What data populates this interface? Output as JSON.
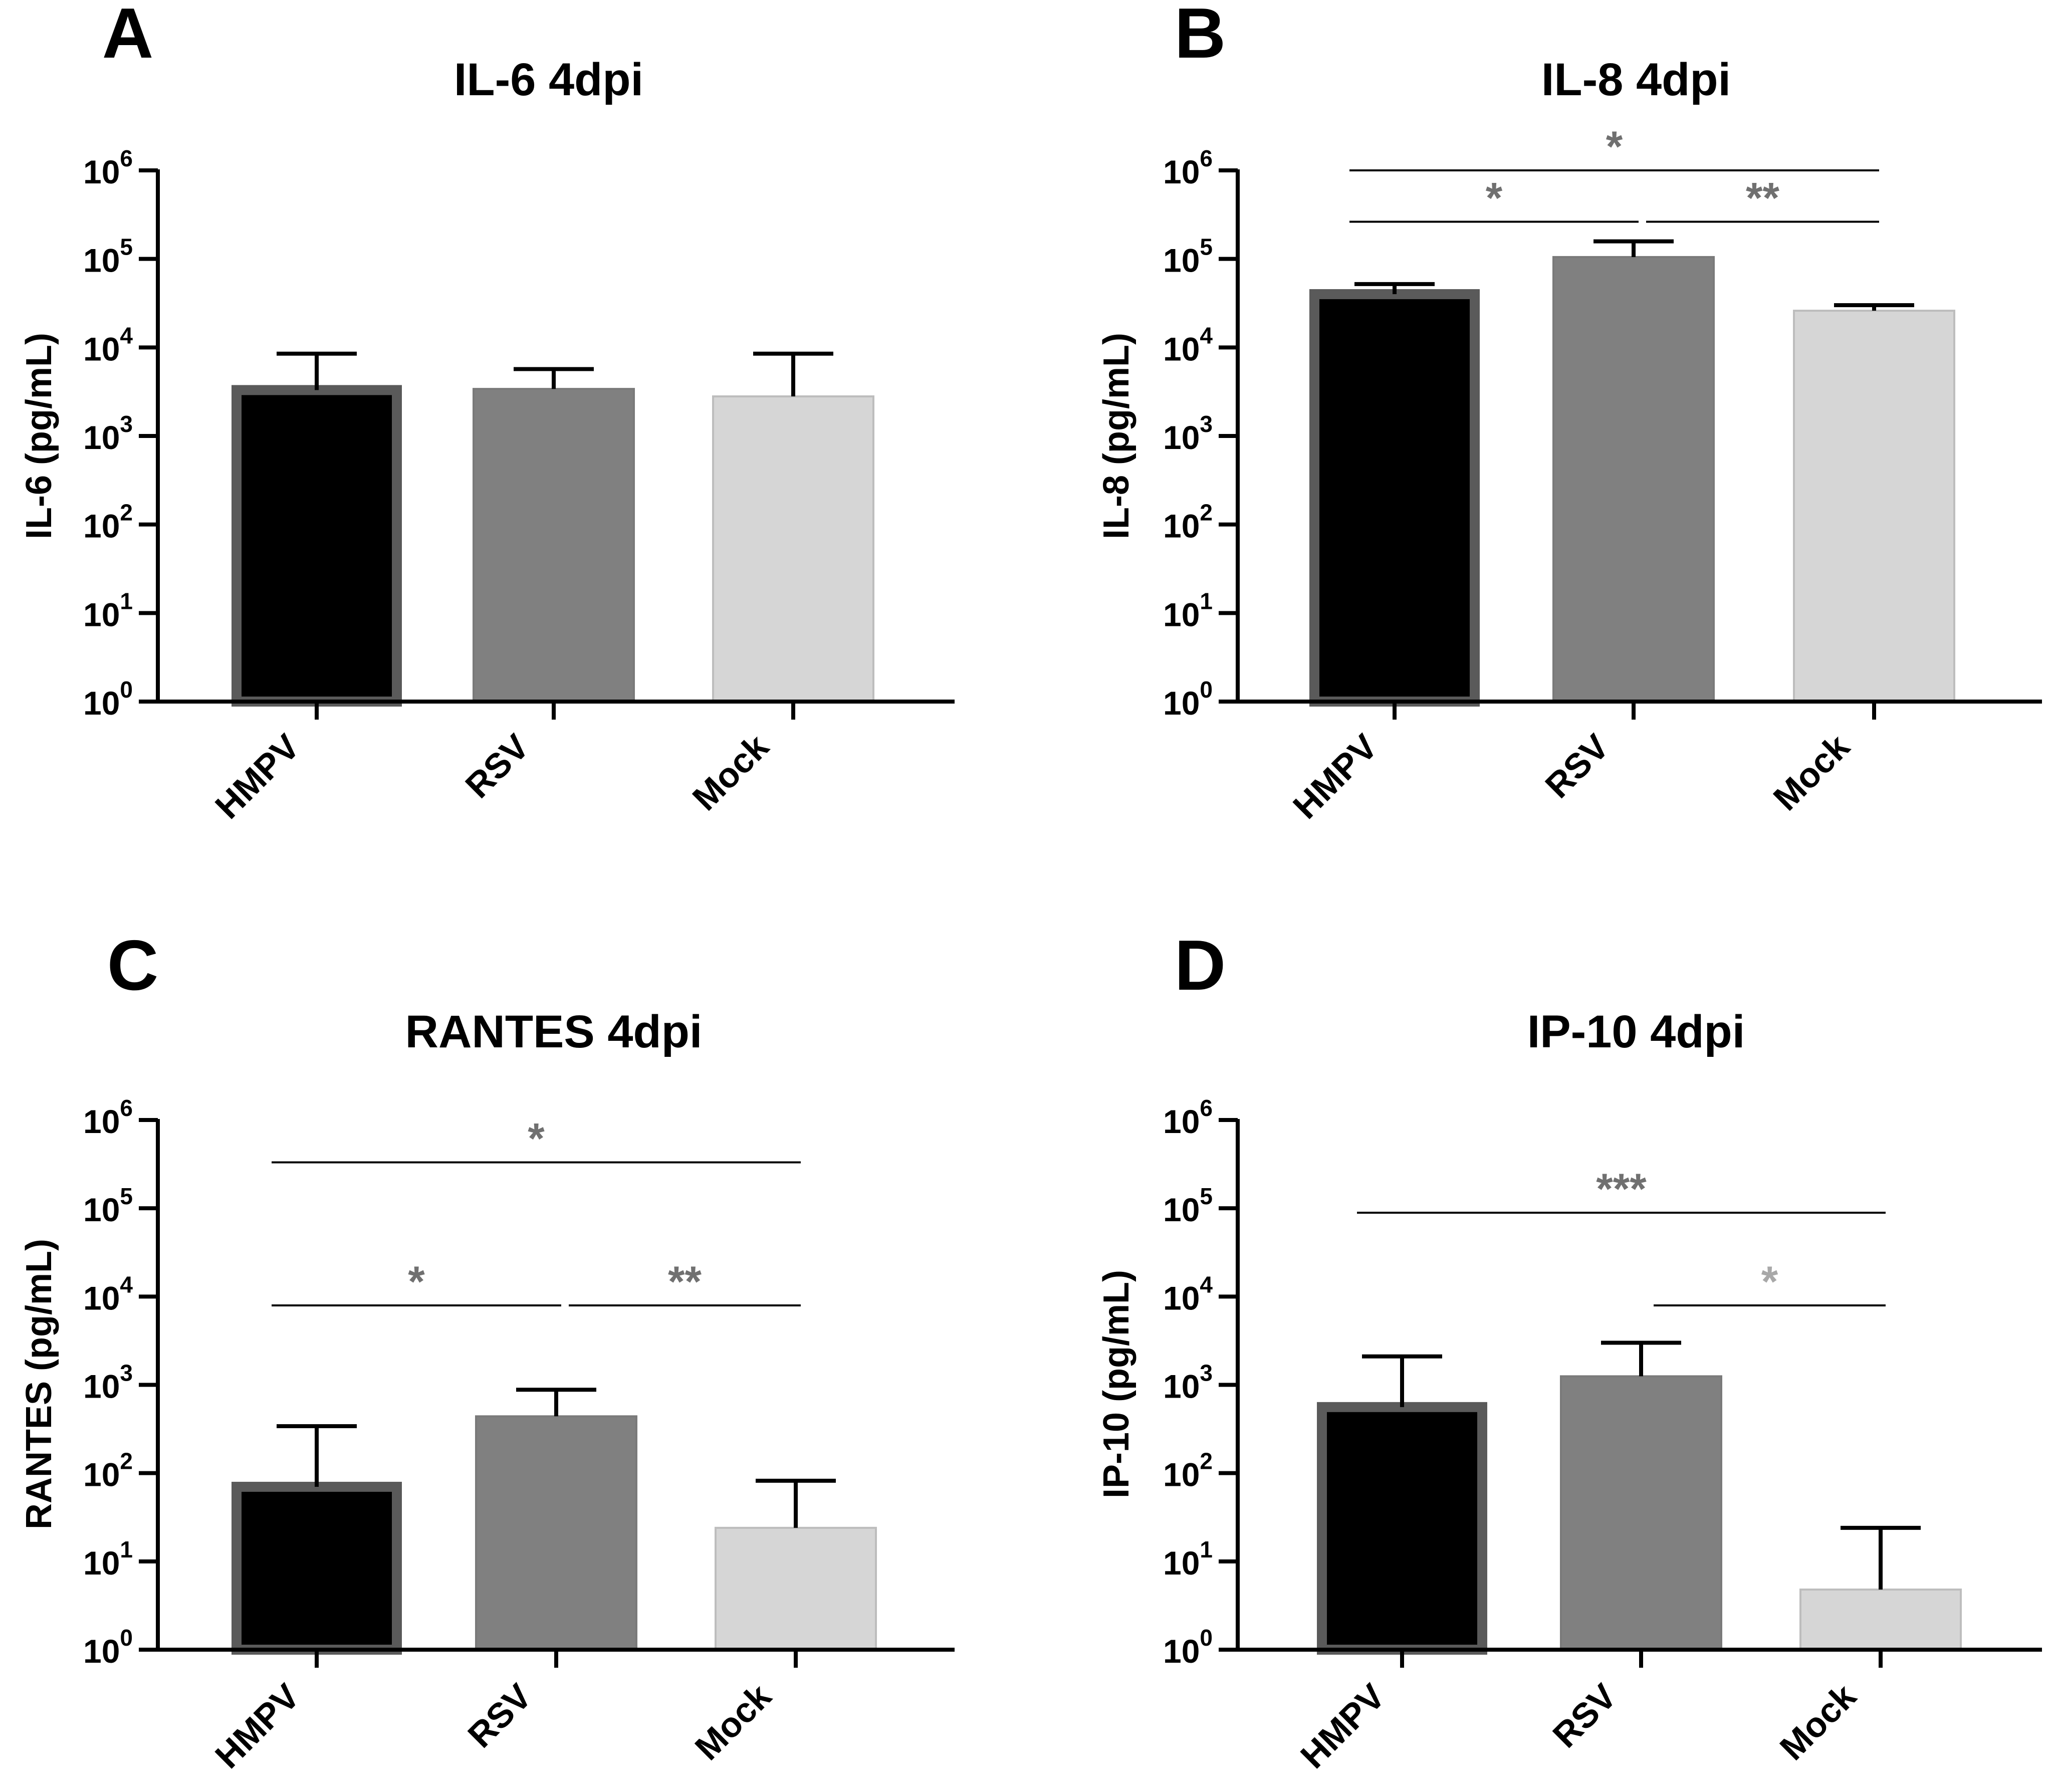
{
  "chart_data": [
    {
      "panel": "A",
      "type": "bar",
      "title": "IL-6 4dpi",
      "ylabel": "IL-6 (pg/mL)",
      "yscale": "log",
      "ylim": [
        1,
        1000000
      ],
      "yticks": [
        {
          "base": "10",
          "exp": "0"
        },
        {
          "base": "10",
          "exp": "1"
        },
        {
          "base": "10",
          "exp": "2"
        },
        {
          "base": "10",
          "exp": "3"
        },
        {
          "base": "10",
          "exp": "4"
        },
        {
          "base": "10",
          "exp": "5"
        },
        {
          "base": "10",
          "exp": "6"
        }
      ],
      "categories": [
        "HMPV",
        "RSV",
        "Mock"
      ],
      "values": [
        3300,
        3400,
        2800
      ],
      "error_upper": [
        8500,
        5700,
        8500
      ],
      "colors": [
        "#000000",
        "#808080",
        "#d6d6d6"
      ],
      "significance": []
    },
    {
      "panel": "B",
      "type": "bar",
      "title": "IL-8 4dpi",
      "ylabel": "IL-8 (pg/mL)",
      "yscale": "log",
      "ylim": [
        1,
        1000000
      ],
      "yticks": [
        {
          "base": "10",
          "exp": "0"
        },
        {
          "base": "10",
          "exp": "1"
        },
        {
          "base": "10",
          "exp": "2"
        },
        {
          "base": "10",
          "exp": "3"
        },
        {
          "base": "10",
          "exp": "4"
        },
        {
          "base": "10",
          "exp": "5"
        },
        {
          "base": "10",
          "exp": "6"
        }
      ],
      "categories": [
        "HMPV",
        "RSV",
        "Mock"
      ],
      "values": [
        40000,
        105000,
        26000
      ],
      "error_upper": [
        52000,
        158000,
        30000
      ],
      "colors": [
        "#000000",
        "#808080",
        "#d6d6d6"
      ],
      "significance": [
        {
          "from": 0,
          "to": 2,
          "label": "*",
          "level_log": 6.0,
          "color": "#707070"
        },
        {
          "from": 0,
          "to": 1,
          "label": "*",
          "level_log": 5.42,
          "color": "#707070"
        },
        {
          "from": 1,
          "to": 2,
          "label": "**",
          "level_log": 5.42,
          "color": "#707070"
        }
      ]
    },
    {
      "panel": "C",
      "type": "bar",
      "title": "RANTES 4dpi",
      "ylabel": "RANTES (pg/mL)",
      "yscale": "log",
      "ylim": [
        1,
        1000000
      ],
      "yticks": [
        {
          "base": "10",
          "exp": "0"
        },
        {
          "base": "10",
          "exp": "1"
        },
        {
          "base": "10",
          "exp": "2"
        },
        {
          "base": "10",
          "exp": "3"
        },
        {
          "base": "10",
          "exp": "4"
        },
        {
          "base": "10",
          "exp": "5"
        },
        {
          "base": "10",
          "exp": "6"
        }
      ],
      "categories": [
        "HMPV",
        "RSV",
        "Mock"
      ],
      "values": [
        70,
        440,
        24
      ],
      "error_upper": [
        340,
        880,
        82
      ],
      "colors": [
        "#000000",
        "#808080",
        "#d6d6d6"
      ],
      "significance": [
        {
          "from": 0,
          "to": 2,
          "label": "*",
          "level_log": 5.52,
          "color": "#707070"
        },
        {
          "from": 0,
          "to": 1,
          "label": "*",
          "level_log": 3.9,
          "color": "#707070"
        },
        {
          "from": 1,
          "to": 2,
          "label": "**",
          "level_log": 3.9,
          "color": "#707070"
        }
      ]
    },
    {
      "panel": "D",
      "type": "bar",
      "title": "IP-10 4dpi",
      "ylabel": "IP-10 (pg/mL)",
      "yscale": "log",
      "ylim": [
        1,
        1000000
      ],
      "yticks": [
        {
          "base": "10",
          "exp": "0"
        },
        {
          "base": "10",
          "exp": "1"
        },
        {
          "base": "10",
          "exp": "2"
        },
        {
          "base": "10",
          "exp": "3"
        },
        {
          "base": "10",
          "exp": "4"
        },
        {
          "base": "10",
          "exp": "5"
        },
        {
          "base": "10",
          "exp": "6"
        }
      ],
      "categories": [
        "HMPV",
        "RSV",
        "Mock"
      ],
      "values": [
        560,
        1250,
        4.8
      ],
      "error_upper": [
        2100,
        3000,
        24
      ],
      "colors": [
        "#000000",
        "#808080",
        "#d6d6d6"
      ],
      "significance": [
        {
          "from": 0,
          "to": 2,
          "label": "***",
          "level_log": 4.95,
          "color": "#707070"
        },
        {
          "from": 1,
          "to": 2,
          "label": "*",
          "level_log": 3.9,
          "color": "#a8a8a8"
        }
      ]
    }
  ]
}
